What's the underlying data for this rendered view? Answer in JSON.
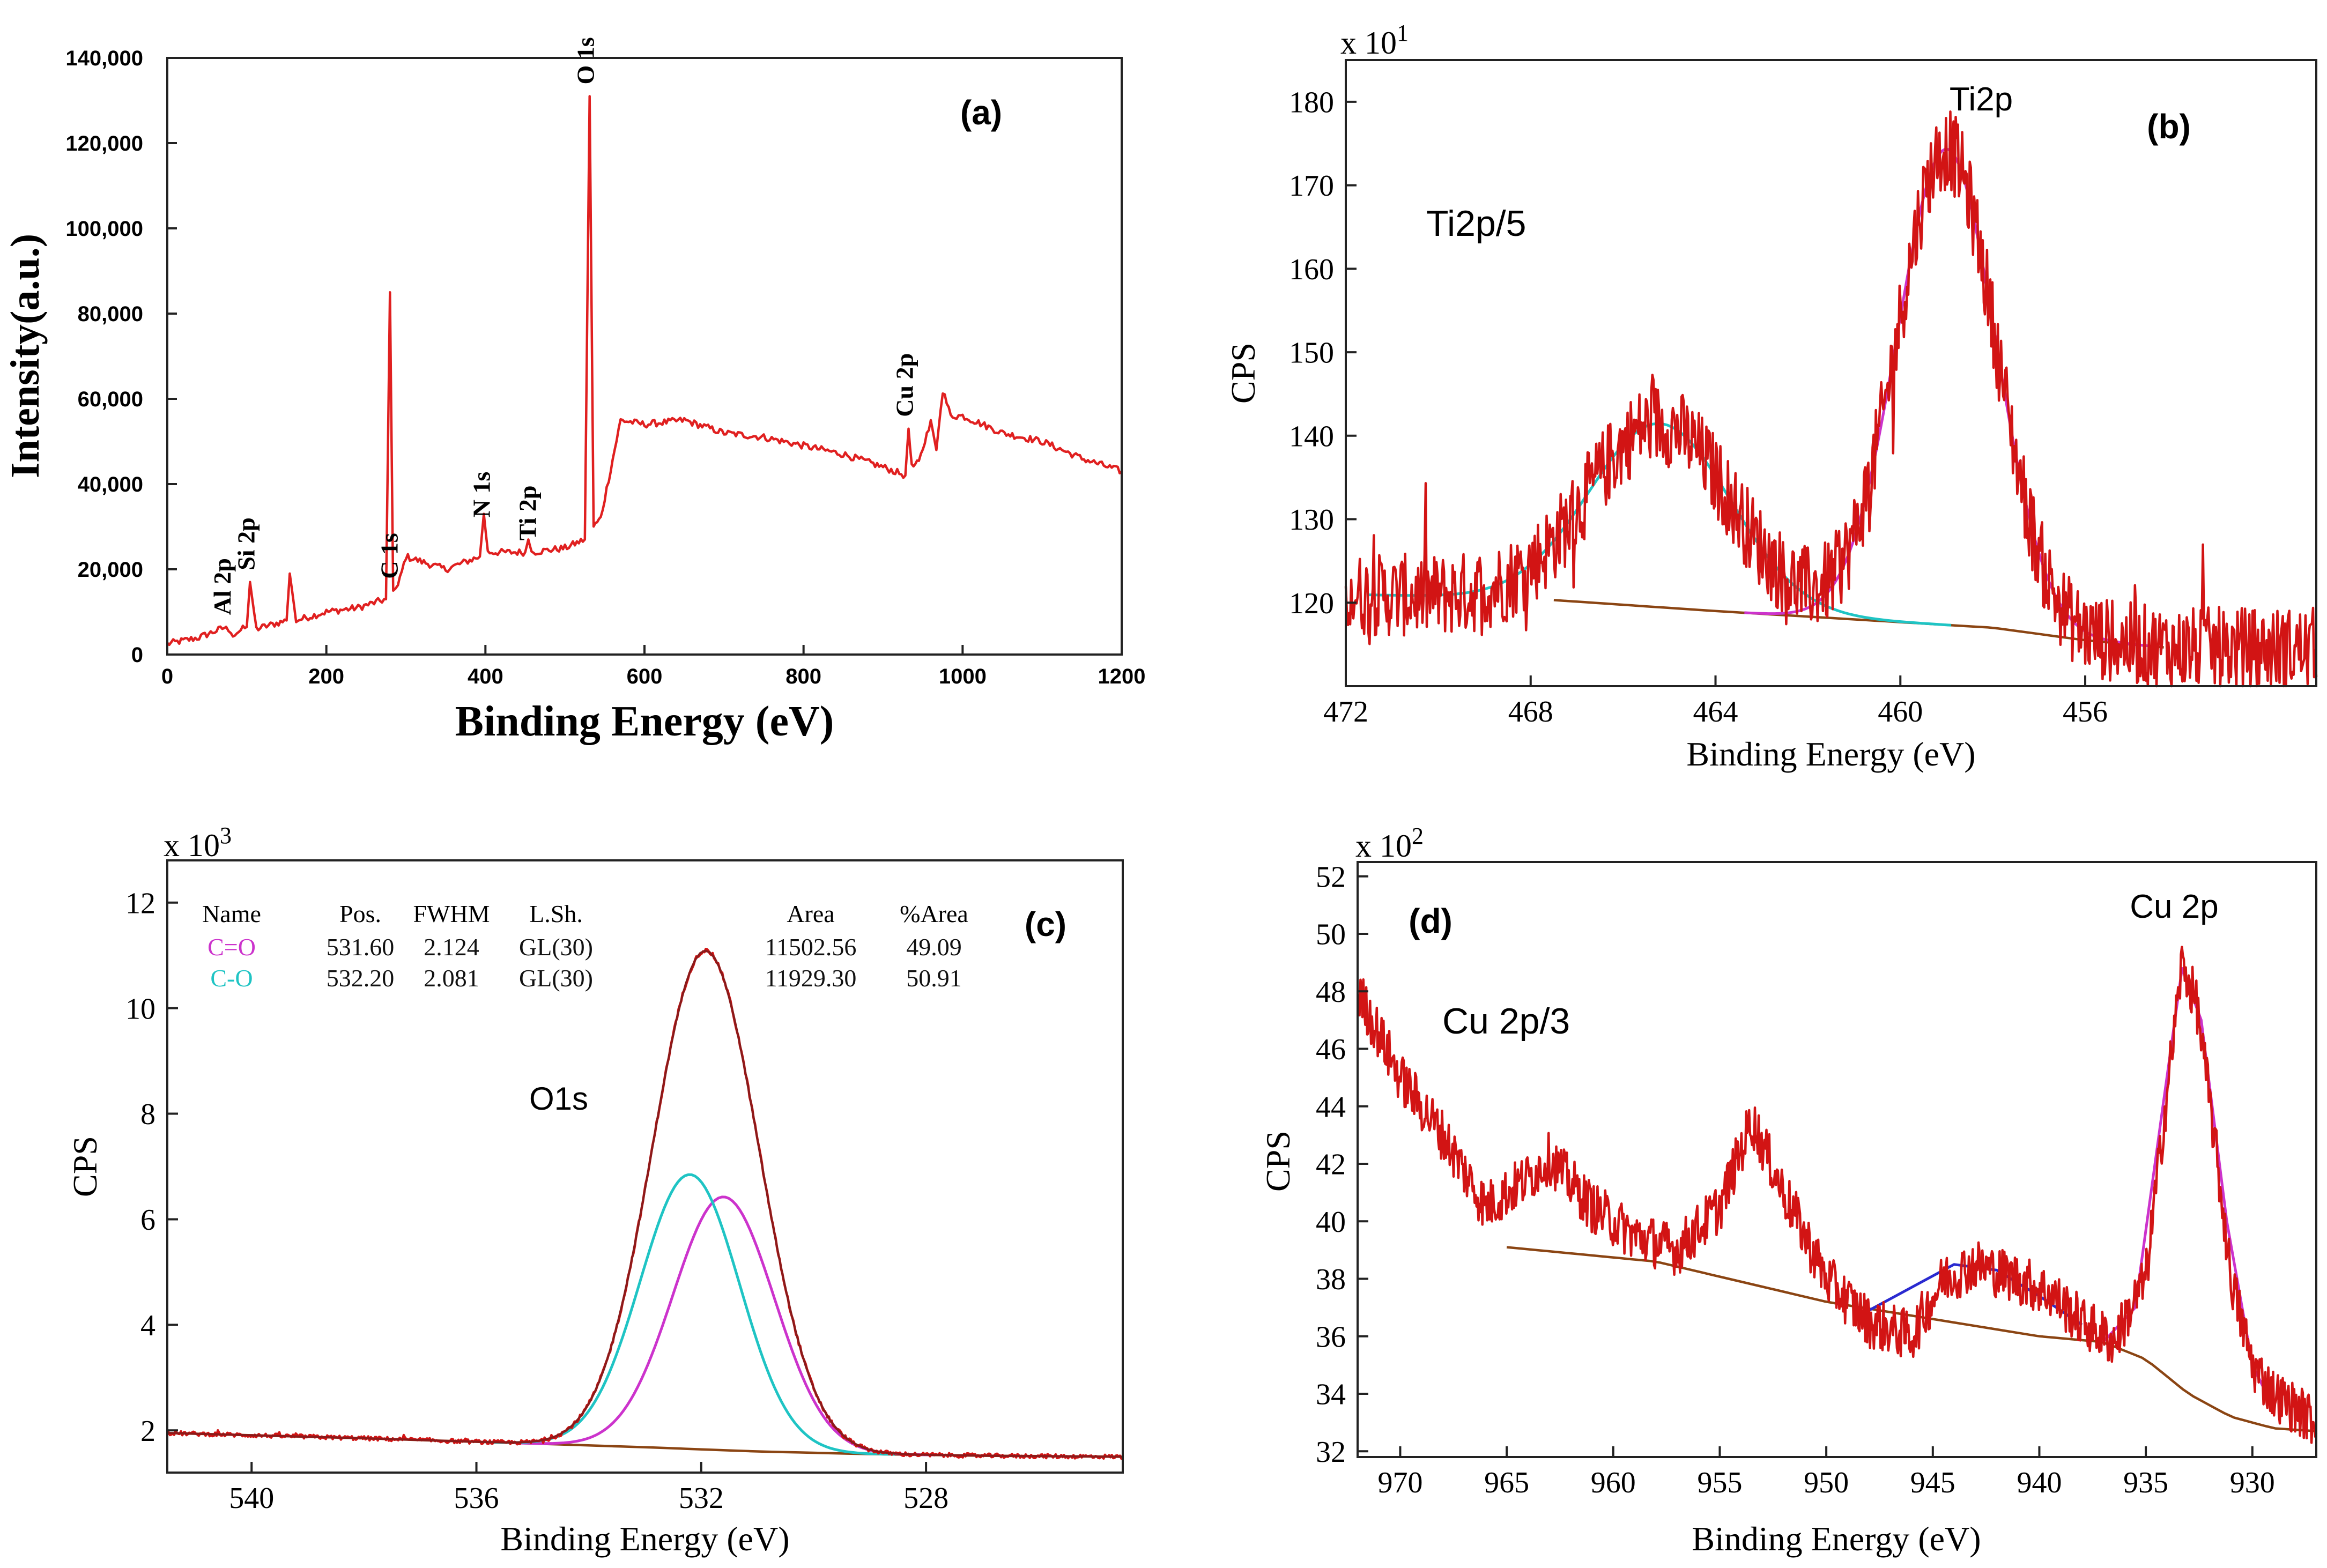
{
  "chart_data": [
    {
      "panel": "a",
      "type": "line",
      "panel_label": "(a)",
      "xlabel": "Binding Energy (eV)",
      "ylabel": "Intensity(a.u.)",
      "xlim": [
        0,
        1200
      ],
      "ylim": [
        0,
        140000
      ],
      "x_ticks": [
        0,
        200,
        400,
        600,
        800,
        1000,
        1200
      ],
      "y_ticks": [
        0,
        20000,
        40000,
        60000,
        80000,
        100000,
        120000,
        140000
      ],
      "y_tick_labels": [
        "0",
        "20,000",
        "40,000",
        "60,000",
        "80,000",
        "100,000",
        "120,000",
        "140,000"
      ],
      "series": [
        {
          "color": "#e02020",
          "x": [
            0,
            40,
            74,
            80,
            100,
            104,
            112,
            150,
            154,
            162,
            200,
            240,
            275,
            280,
            284,
            290,
            300,
            350,
            393,
            398,
            403,
            450,
            454,
            458,
            500,
            525,
            531,
            536,
            545,
            570,
            600,
            650,
            700,
            750,
            800,
            850,
            900,
            928,
            932,
            936,
            945,
            960,
            967,
            975,
            985,
            1000,
            1050,
            1100,
            1150,
            1200
          ],
          "y": [
            2500,
            4000,
            6500,
            4500,
            6500,
            17000,
            6000,
            8000,
            19000,
            8000,
            10000,
            11000,
            13000,
            85000,
            15000,
            16000,
            23000,
            20000,
            23000,
            33000,
            24000,
            24000,
            27000,
            24000,
            25000,
            27000,
            131000,
            30000,
            32000,
            55000,
            54000,
            55000,
            52000,
            51000,
            49000,
            47000,
            44000,
            42000,
            53000,
            44000,
            45000,
            55000,
            48000,
            62000,
            56000,
            56000,
            52000,
            50000,
            46000,
            43000
          ]
        }
      ],
      "annotations": [
        {
          "text": "Al 2p",
          "x": 74
        },
        {
          "text": "Si 2p",
          "x": 104
        },
        {
          "text": "C 1s",
          "x": 284
        },
        {
          "text": "N 1s",
          "x": 400
        },
        {
          "text": "Ti 2p",
          "x": 458
        },
        {
          "text": "O 1s",
          "x": 531
        },
        {
          "text": "Cu 2p",
          "x": 932
        }
      ]
    },
    {
      "panel": "b",
      "type": "line",
      "panel_label": "(b)",
      "multiplier": "x 10",
      "multiplier_exp": "1",
      "xlabel": "Binding Energy (eV)",
      "ylabel": "CPS",
      "xlim": [
        472,
        451
      ],
      "ylim": [
        110,
        185
      ],
      "x_ticks": [
        472,
        468,
        464,
        460,
        456
      ],
      "y_ticks": [
        120,
        130,
        140,
        150,
        160,
        170,
        180
      ],
      "annotations": [
        {
          "text": "Ti2p/5"
        },
        {
          "text": "Ti2p",
          "x": 459
        }
      ],
      "peaks": [
        {
          "center": 465.2,
          "fwhm": 3.6,
          "height": 22,
          "color": "#1fc4c4"
        },
        {
          "center": 459.0,
          "fwhm": 2.5,
          "height": 57,
          "color": "#cc33cc"
        }
      ],
      "background": {
        "x": [
          472,
          468,
          464,
          461,
          458,
          456,
          454,
          453
        ],
        "y": [
          121,
          120.5,
          119,
          118,
          117,
          115.5,
          114.5,
          114.5
        ],
        "color": "#8b4513"
      },
      "raw_color": "#d21414",
      "noise": 5
    },
    {
      "panel": "c",
      "type": "line",
      "panel_label": "(c)",
      "multiplier": "x 10",
      "multiplier_exp": "3",
      "xlabel": "Binding Energy (eV)",
      "ylabel": "CPS",
      "xlim": [
        541.5,
        524.5
      ],
      "ylim": [
        1.2,
        12.8
      ],
      "x_ticks": [
        540,
        536,
        532,
        528
      ],
      "y_ticks": [
        2,
        4,
        6,
        8,
        10,
        12
      ],
      "annotations": [
        {
          "text": "O1s",
          "x": 534
        }
      ],
      "peaks": [
        {
          "name": "C=O",
          "center": 531.6,
          "fwhm": 2.124,
          "height": 4.8,
          "color": "#cc33cc"
        },
        {
          "name": "C-O",
          "center": 532.2,
          "fwhm": 2.081,
          "height": 5.2,
          "color": "#1fc4c4"
        }
      ],
      "background": {
        "x": [
          541.5,
          538,
          535,
          533,
          531,
          529,
          527,
          524.5
        ],
        "y": [
          1.95,
          1.85,
          1.75,
          1.68,
          1.6,
          1.55,
          1.52,
          1.5
        ],
        "color": "#8b4513"
      },
      "raw_color": "#d21414",
      "noise": 0.04,
      "table": {
        "headers": [
          "Name",
          "Pos.",
          "FWHM",
          "L.Sh.",
          "Area",
          "%Area"
        ],
        "rows": [
          {
            "name": "C=O",
            "pos": "531.60",
            "fwhm": "2.124",
            "lsh": "GL(30)",
            "area": "11502.56",
            "pct": "49.09",
            "color": "#cc33cc"
          },
          {
            "name": "C-O",
            "pos": "532.20",
            "fwhm": "2.081",
            "lsh": "GL(30)",
            "area": "11929.30",
            "pct": "50.91",
            "color": "#1fc4c4"
          }
        ]
      }
    },
    {
      "panel": "d",
      "type": "line",
      "panel_label": "(d)",
      "multiplier": "x 10",
      "multiplier_exp": "2",
      "xlabel": "Binding Energy (eV)",
      "ylabel": "CPS",
      "xlim": [
        972,
        927
      ],
      "ylim": [
        31.8,
        52.5
      ],
      "x_ticks": [
        970,
        965,
        960,
        955,
        950,
        945,
        940,
        935,
        930
      ],
      "y_ticks": [
        32,
        34,
        36,
        38,
        40,
        42,
        44,
        46,
        48,
        50,
        52
      ],
      "annotations": [
        {
          "text": "Cu 2p/3"
        },
        {
          "text": "Cu 2p",
          "x": 933
        }
      ],
      "raw_path": {
        "x": [
          972,
          970,
          968,
          966,
          964,
          963,
          961,
          959,
          957,
          955,
          953.5,
          952,
          950,
          948,
          946,
          944.5,
          943,
          941,
          939.5,
          938,
          936.5,
          935,
          934,
          933.3,
          932.6,
          931.8,
          931,
          930,
          929,
          928,
          927
        ],
        "y": [
          48,
          45,
          43,
          40.5,
          41.5,
          42.2,
          40.5,
          39.5,
          39,
          40.5,
          43.5,
          41,
          38,
          36.5,
          36,
          38,
          38.5,
          38,
          37.5,
          36.5,
          35.8,
          38,
          44.5,
          49,
          47.5,
          43,
          38,
          35,
          34,
          33.5,
          33
        ]
      },
      "background": {
        "x": [
          965,
          958,
          950,
          945,
          940,
          937,
          935,
          933,
          931,
          929,
          927
        ],
        "y": [
          39.1,
          38.6,
          37.2,
          36.6,
          36,
          35.8,
          35.2,
          34,
          33.2,
          32.8,
          32.7
        ],
        "color": "#8b4513"
      },
      "fit_paths": [
        {
          "x": [
            948,
            946,
            944,
            942,
            940,
            938
          ],
          "y": [
            36.9,
            37.7,
            38.5,
            38.3,
            37.4,
            36.4
          ],
          "color": "#2a2ad0"
        },
        {
          "x": [
            937,
            935.5,
            934.2,
            933.3,
            932.4,
            931.2,
            930,
            929
          ],
          "y": [
            35.8,
            37,
            44,
            48.8,
            47,
            40,
            35,
            33.5
          ],
          "color": "#cc33cc"
        }
      ],
      "raw_color": "#d21414",
      "noise": 0.9
    }
  ]
}
